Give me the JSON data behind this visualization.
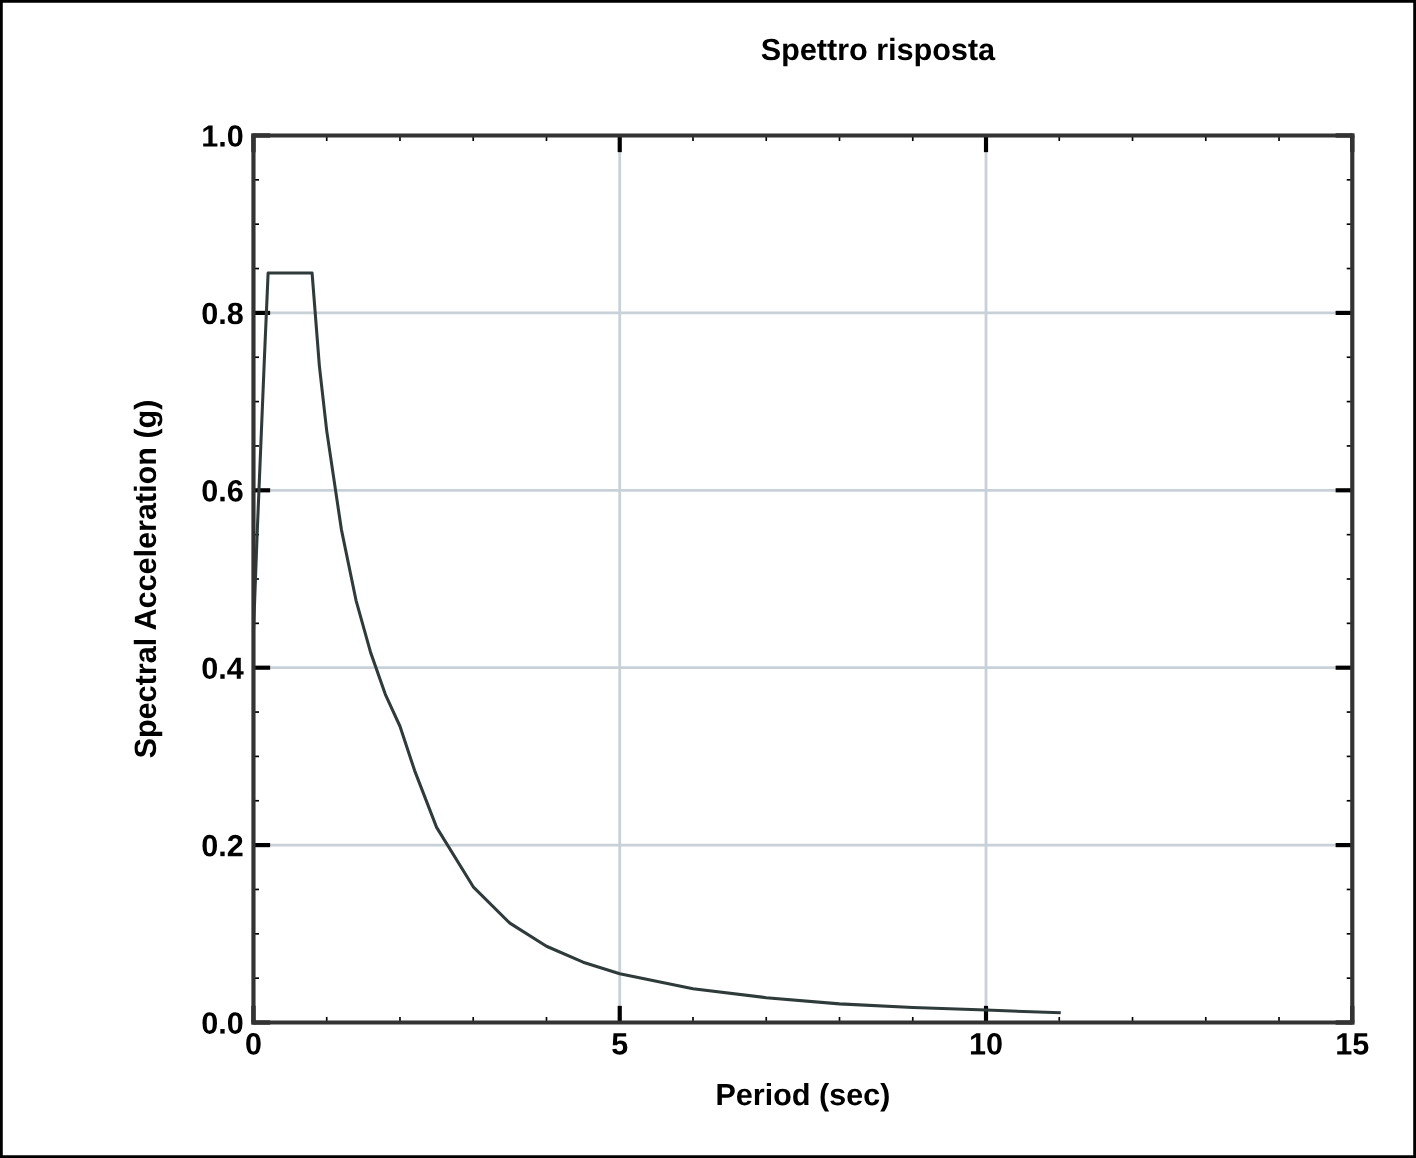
{
  "chart_data": {
    "type": "line",
    "title": "Spettro risposta",
    "xlabel": "Period (sec)",
    "ylabel": "Spectral Acceleration (g)",
    "x": [
      0,
      0.05,
      0.1,
      0.15,
      0.2,
      0.8,
      0.9,
      1.0,
      1.2,
      1.4,
      1.6,
      1.8,
      2.0,
      2.2,
      2.5,
      3,
      3.5,
      4,
      4.5,
      5,
      6,
      7,
      8,
      9,
      10,
      11
    ],
    "series": [
      {
        "color": "#2f3b3b",
        "values": [
          0.44,
          0.55,
          0.65,
          0.75,
          0.845,
          0.845,
          0.74,
          0.667,
          0.556,
          0.476,
          0.417,
          0.37,
          0.334,
          0.284,
          0.22,
          0.153,
          0.112,
          0.086,
          0.068,
          0.055,
          0.038,
          0.028,
          0.021,
          0.017,
          0.014,
          0.011
        ]
      }
    ],
    "xlim": [
      0,
      15
    ],
    "xticks": [
      0,
      5,
      10,
      15
    ],
    "ylim": [
      0,
      1.0
    ],
    "yticks": [
      {
        "value": 0,
        "label": "0.0"
      },
      {
        "value": 0.2,
        "label": "0.2"
      },
      {
        "value": 0.4,
        "label": "0.4"
      },
      {
        "value": 0.6,
        "label": "0.6"
      },
      {
        "value": 0.8,
        "label": "0.8"
      },
      {
        "value": 1.0,
        "label": "1.0"
      }
    ],
    "grid": true,
    "legend": false,
    "marker": "none",
    "line_style": "solid"
  }
}
